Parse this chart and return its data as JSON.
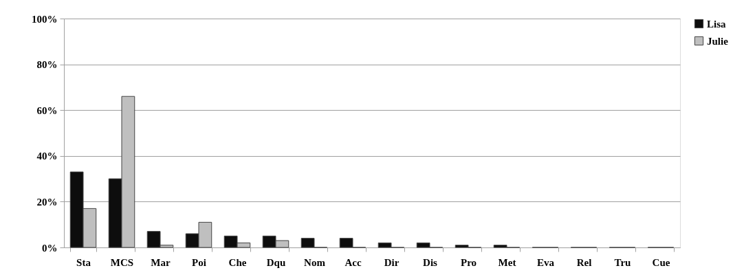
{
  "chart_data": {
    "type": "bar",
    "categories": [
      "Sta",
      "MCS",
      "Mar",
      "Poi",
      "Che",
      "Dqu",
      "Nom",
      "Acc",
      "Dir",
      "Dis",
      "Pro",
      "Met",
      "Eva",
      "Rel",
      "Tru",
      "Cue"
    ],
    "series": [
      {
        "name": "Lisa",
        "color": "#0d0d0d",
        "values": [
          33,
          30,
          7,
          6,
          5,
          5,
          4,
          4,
          2,
          2,
          1,
          1,
          0,
          0,
          0,
          0
        ]
      },
      {
        "name": "Julie",
        "color": "#bfbfbf",
        "values": [
          17,
          66,
          1,
          11,
          2,
          3,
          0,
          0,
          0,
          0,
          0,
          0,
          0,
          0,
          0,
          0
        ]
      }
    ],
    "ylim": [
      0,
      100
    ],
    "yticks": [
      {
        "value": 0,
        "label": "0%"
      },
      {
        "value": 20,
        "label": "20%"
      },
      {
        "value": 40,
        "label": "40%"
      },
      {
        "value": 60,
        "label": "60%"
      },
      {
        "value": 80,
        "label": "80%"
      },
      {
        "value": 100,
        "label": "100%"
      }
    ],
    "grid": "y",
    "legend": "right"
  }
}
